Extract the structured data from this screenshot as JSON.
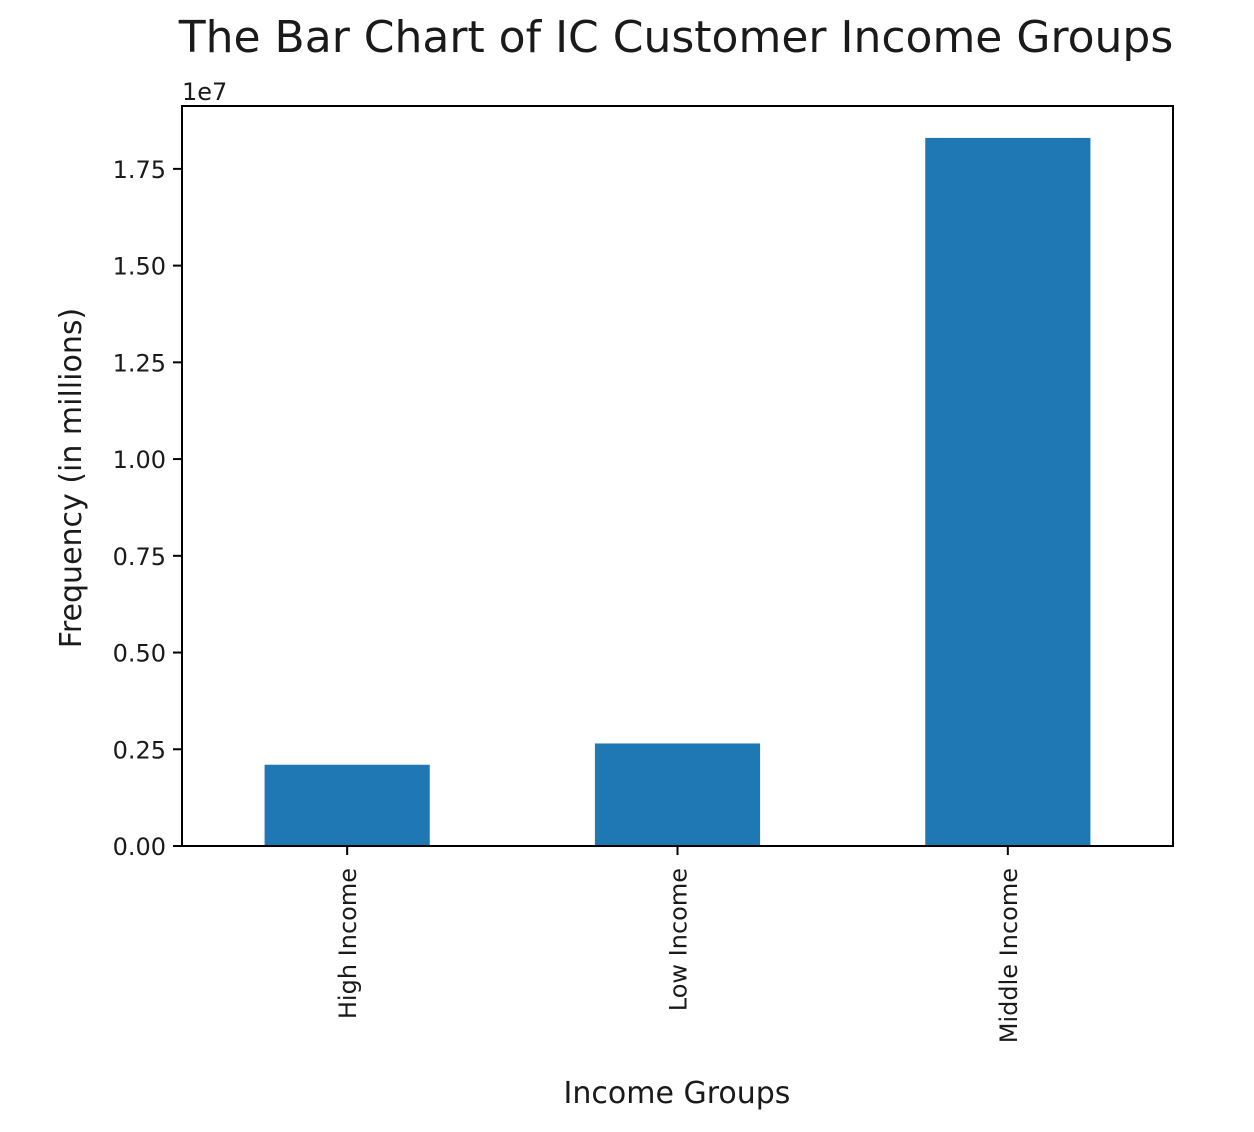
{
  "chart_data": {
    "type": "bar",
    "title": "The Bar Chart of IC Customer Income Groups",
    "xlabel": "Income Groups",
    "ylabel": "Frequency (in millions)",
    "y_offset_label": "1e7",
    "categories": [
      "High Income",
      "Low Income",
      "Middle Income"
    ],
    "values": [
      2100000,
      2650000,
      18300000
    ],
    "ylim": [
      0,
      19125000
    ],
    "yticks": [
      0,
      2500000,
      5000000,
      7500000,
      10000000,
      12500000,
      15000000,
      17500000
    ],
    "ytick_labels": [
      "0.00",
      "0.25",
      "0.50",
      "0.75",
      "1.00",
      "1.25",
      "1.50",
      "1.75"
    ],
    "bar_color": "#1f77b4",
    "grid": false,
    "legend": "none",
    "tick_label_rotation": "vertical"
  }
}
